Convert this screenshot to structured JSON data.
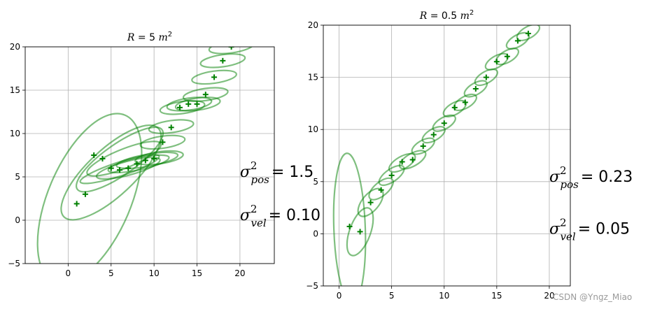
{
  "watermark": "CSDN @Yngz_Miao",
  "chart_data": [
    {
      "type": "scatter",
      "title": "R = 5 m²",
      "title_var": "R",
      "title_eq": " = 5 ",
      "title_unit": "m",
      "title_exp": "2",
      "xlim": [
        -5,
        24
      ],
      "ylim": [
        -5,
        20
      ],
      "xticks": [
        0,
        5,
        10,
        15,
        20
      ],
      "yticks": [
        -5,
        0,
        5,
        10,
        15,
        20
      ],
      "grid": true,
      "marker_color": "#008000",
      "ellipse_color": "#008000",
      "points": [
        [
          1,
          1.9
        ],
        [
          2,
          3
        ],
        [
          3,
          7.5
        ],
        [
          4,
          7.1
        ],
        [
          5,
          6
        ],
        [
          6,
          5.8
        ],
        [
          7,
          6
        ],
        [
          8,
          6.5
        ],
        [
          9,
          6.9
        ],
        [
          10,
          7.1
        ],
        [
          11,
          9
        ],
        [
          12,
          10.7
        ],
        [
          13,
          13
        ],
        [
          14,
          13.4
        ],
        [
          15,
          13.4
        ],
        [
          16,
          14.5
        ],
        [
          17,
          16.5
        ],
        [
          18,
          18.4
        ],
        [
          19,
          20
        ]
      ],
      "ellipses": [
        {
          "cx": 2.5,
          "cy": 2.5,
          "rx": 10.5,
          "ry": 4.8,
          "angle": 67
        },
        {
          "cx": 5,
          "cy": 5.5,
          "rx": 7.5,
          "ry": 2.7,
          "angle": 43
        },
        {
          "cx": 6,
          "cy": 7,
          "rx": 6,
          "ry": 1.8,
          "angle": 35
        },
        {
          "cx": 6.5,
          "cy": 7.1,
          "rx": 4.6,
          "ry": 1.1,
          "angle": 22
        },
        {
          "cx": 6,
          "cy": 5.9,
          "rx": 4.8,
          "ry": 0.8,
          "angle": 18
        },
        {
          "cx": 7,
          "cy": 6,
          "rx": 3.8,
          "ry": 0.8,
          "angle": 15
        },
        {
          "cx": 8.2,
          "cy": 6.5,
          "rx": 3.6,
          "ry": 0.7,
          "angle": 12
        },
        {
          "cx": 9.2,
          "cy": 6.9,
          "rx": 3.6,
          "ry": 0.7,
          "angle": 10
        },
        {
          "cx": 10.6,
          "cy": 7.2,
          "rx": 2.8,
          "ry": 0.7,
          "angle": 8
        },
        {
          "cx": 11,
          "cy": 9,
          "rx": 2.6,
          "ry": 0.7,
          "angle": 8
        },
        {
          "cx": 12,
          "cy": 10.8,
          "rx": 2.6,
          "ry": 0.7,
          "angle": 8
        },
        {
          "cx": 13.3,
          "cy": 13,
          "rx": 2.6,
          "ry": 0.7,
          "angle": 8
        },
        {
          "cx": 14.1,
          "cy": 13.4,
          "rx": 2.6,
          "ry": 0.7,
          "angle": 8
        },
        {
          "cx": 15.1,
          "cy": 13.4,
          "rx": 2.6,
          "ry": 0.7,
          "angle": 8
        },
        {
          "cx": 16,
          "cy": 14.5,
          "rx": 2.6,
          "ry": 0.7,
          "angle": 8
        },
        {
          "cx": 17,
          "cy": 16.5,
          "rx": 2.6,
          "ry": 0.7,
          "angle": 8
        },
        {
          "cx": 18,
          "cy": 18.4,
          "rx": 2.6,
          "ry": 0.7,
          "angle": 8
        },
        {
          "cx": 19,
          "cy": 20,
          "rx": 2.6,
          "ry": 0.7,
          "angle": 8
        }
      ],
      "annotations": [
        {
          "sym": "σ",
          "sup": "2",
          "sub": "pos",
          "val": "= 1.5",
          "at": [
            20,
            5
          ]
        },
        {
          "sym": "σ",
          "sup": "2",
          "sub": "vel",
          "val": "= 0.10",
          "at": [
            20,
            0
          ]
        }
      ]
    },
    {
      "type": "scatter",
      "title": "R = 0.5 m²",
      "title_var": "R",
      "title_eq": " = 0.5 ",
      "title_unit": "m",
      "title_exp": "2",
      "xlim": [
        -1.5,
        22
      ],
      "ylim": [
        -5,
        20
      ],
      "xticks": [
        0,
        5,
        10,
        15,
        20
      ],
      "yticks": [
        -5,
        0,
        5,
        10,
        15,
        20
      ],
      "grid": true,
      "marker_color": "#008000",
      "ellipse_color": "#008000",
      "points": [
        [
          1,
          0.7
        ],
        [
          2,
          0.2
        ],
        [
          3,
          3
        ],
        [
          4,
          4.2
        ],
        [
          5,
          5.6
        ],
        [
          6,
          6.9
        ],
        [
          7,
          7.1
        ],
        [
          8,
          8.4
        ],
        [
          9,
          9.5
        ],
        [
          10,
          10.6
        ],
        [
          11,
          12.1
        ],
        [
          12,
          12.6
        ],
        [
          13,
          13.9
        ],
        [
          14,
          15
        ],
        [
          15,
          16.5
        ],
        [
          16,
          17
        ],
        [
          17,
          18.5
        ],
        [
          18,
          19.2
        ]
      ],
      "ellipses": [
        {
          "cx": 1,
          "cy": 0.5,
          "rx": 7.2,
          "ry": 1.5,
          "angle": 92
        },
        {
          "cx": 2,
          "cy": 0.2,
          "rx": 2.4,
          "ry": 1,
          "angle": 70
        },
        {
          "cx": 3,
          "cy": 3,
          "rx": 1.6,
          "ry": 0.8,
          "angle": 50
        },
        {
          "cx": 4,
          "cy": 4.3,
          "rx": 1.4,
          "ry": 0.65,
          "angle": 40
        },
        {
          "cx": 5,
          "cy": 5.6,
          "rx": 1.4,
          "ry": 0.6,
          "angle": 35
        },
        {
          "cx": 6,
          "cy": 6.8,
          "rx": 1.4,
          "ry": 0.6,
          "angle": 30
        },
        {
          "cx": 7,
          "cy": 7.1,
          "rx": 1.4,
          "ry": 0.6,
          "angle": 30
        },
        {
          "cx": 8,
          "cy": 8.4,
          "rx": 1.2,
          "ry": 0.55,
          "angle": 30
        },
        {
          "cx": 9,
          "cy": 9.5,
          "rx": 1.2,
          "ry": 0.55,
          "angle": 30
        },
        {
          "cx": 10,
          "cy": 10.6,
          "rx": 1.2,
          "ry": 0.55,
          "angle": 30
        },
        {
          "cx": 11,
          "cy": 12,
          "rx": 1.2,
          "ry": 0.55,
          "angle": 30
        },
        {
          "cx": 12,
          "cy": 12.6,
          "rx": 1.2,
          "ry": 0.55,
          "angle": 30
        },
        {
          "cx": 13,
          "cy": 13.9,
          "rx": 1.2,
          "ry": 0.55,
          "angle": 30
        },
        {
          "cx": 14,
          "cy": 15,
          "rx": 1.2,
          "ry": 0.55,
          "angle": 30
        },
        {
          "cx": 15,
          "cy": 16.5,
          "rx": 1.2,
          "ry": 0.55,
          "angle": 30
        },
        {
          "cx": 16,
          "cy": 17,
          "rx": 1.2,
          "ry": 0.55,
          "angle": 30
        },
        {
          "cx": 17,
          "cy": 18.5,
          "rx": 1.2,
          "ry": 0.55,
          "angle": 30
        },
        {
          "cx": 18,
          "cy": 19.3,
          "rx": 1.2,
          "ry": 0.55,
          "angle": 30
        }
      ],
      "annotations": [
        {
          "sym": "σ",
          "sup": "2",
          "sub": "pos",
          "val": "= 0.23",
          "at": [
            20,
            5
          ]
        },
        {
          "sym": "σ",
          "sup": "2",
          "sub": "vel",
          "val": "= 0.05",
          "at": [
            20,
            0
          ]
        }
      ]
    }
  ]
}
